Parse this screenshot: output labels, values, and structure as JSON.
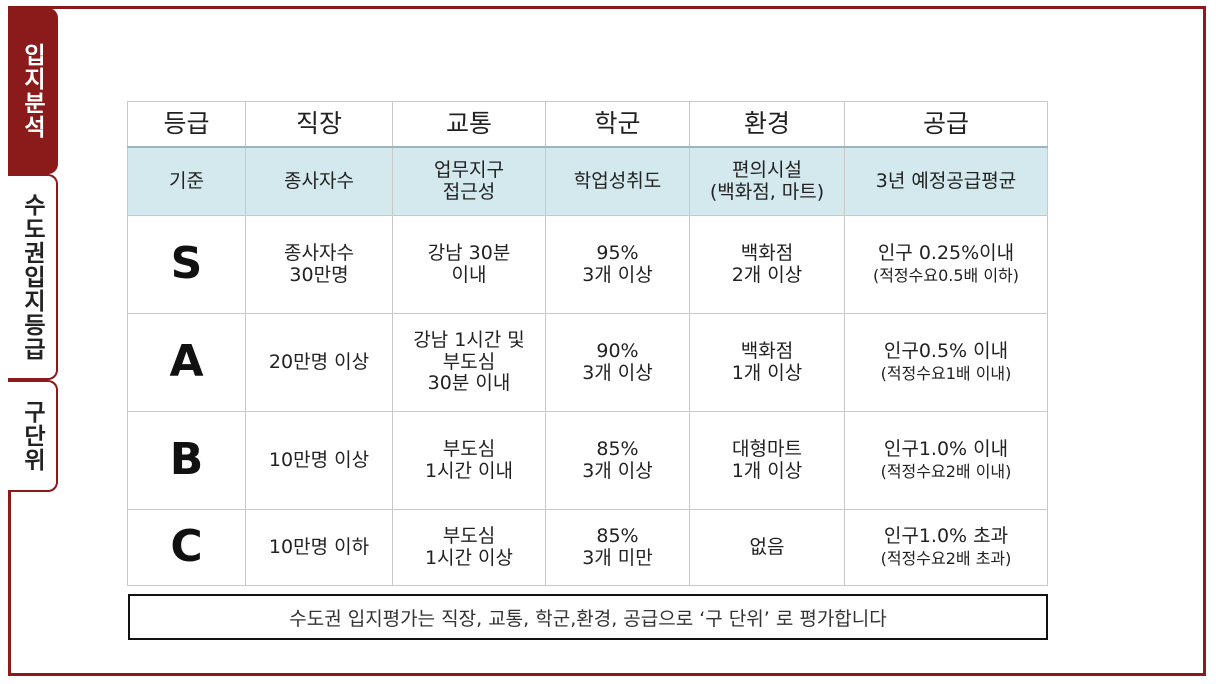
{
  "tabs": [
    {
      "label": "입지분석",
      "active": true
    },
    {
      "label": "수도권입지등급",
      "active": false
    },
    {
      "label": "구단위",
      "active": false
    }
  ],
  "table": {
    "headers": [
      "등급",
      "직장",
      "교통",
      "학군",
      "환경",
      "공급"
    ],
    "criteria": [
      "기준",
      [
        "종사자수"
      ],
      [
        "업무지구",
        "접근성"
      ],
      [
        "학업성취도"
      ],
      [
        "편의시설",
        "(백화점, 마트)"
      ],
      [
        "3년 예정공급평균"
      ]
    ],
    "rows": [
      {
        "grade": "S",
        "job": [
          "종사자수",
          "30만명"
        ],
        "traffic": [
          "강남 30분",
          "이내"
        ],
        "school": [
          "95%",
          "3개 이상"
        ],
        "env": [
          "백화점",
          "2개 이상"
        ],
        "supply": [
          "인구 0.25%이내",
          "(적정수요0.5배 이하)"
        ]
      },
      {
        "grade": "A",
        "job": [
          "20만명 이상"
        ],
        "traffic": [
          "강남 1시간 및",
          "부도심",
          "30분 이내"
        ],
        "school": [
          "90%",
          "3개 이상"
        ],
        "env": [
          "백화점",
          "1개 이상"
        ],
        "supply": [
          "인구0.5% 이내",
          "(적정수요1배 이내)"
        ]
      },
      {
        "grade": "B",
        "job": [
          "10만명 이상"
        ],
        "traffic": [
          "부도심",
          "1시간 이내"
        ],
        "school": [
          "85%",
          "3개 이상"
        ],
        "env": [
          "대형마트",
          "1개 이상"
        ],
        "supply": [
          "인구1.0% 이내",
          "(적정수요2배 이내)"
        ]
      },
      {
        "grade": "C",
        "job": [
          "10만명 이하"
        ],
        "traffic": [
          "부도심",
          "1시간 이상"
        ],
        "school": [
          "85%",
          "3개 미만"
        ],
        "env": [
          "없음"
        ],
        "supply": [
          "인구1.0% 초과",
          "(적정수요2배 초과)"
        ]
      }
    ]
  },
  "footer": "수도권 입지평가는 직장, 교통, 학군,환경, 공급으로 ‘구 단위’ 로 평가합니다",
  "colors": {
    "accent": "#8b1a1a",
    "criteria_bg": "#d4e9ee"
  }
}
